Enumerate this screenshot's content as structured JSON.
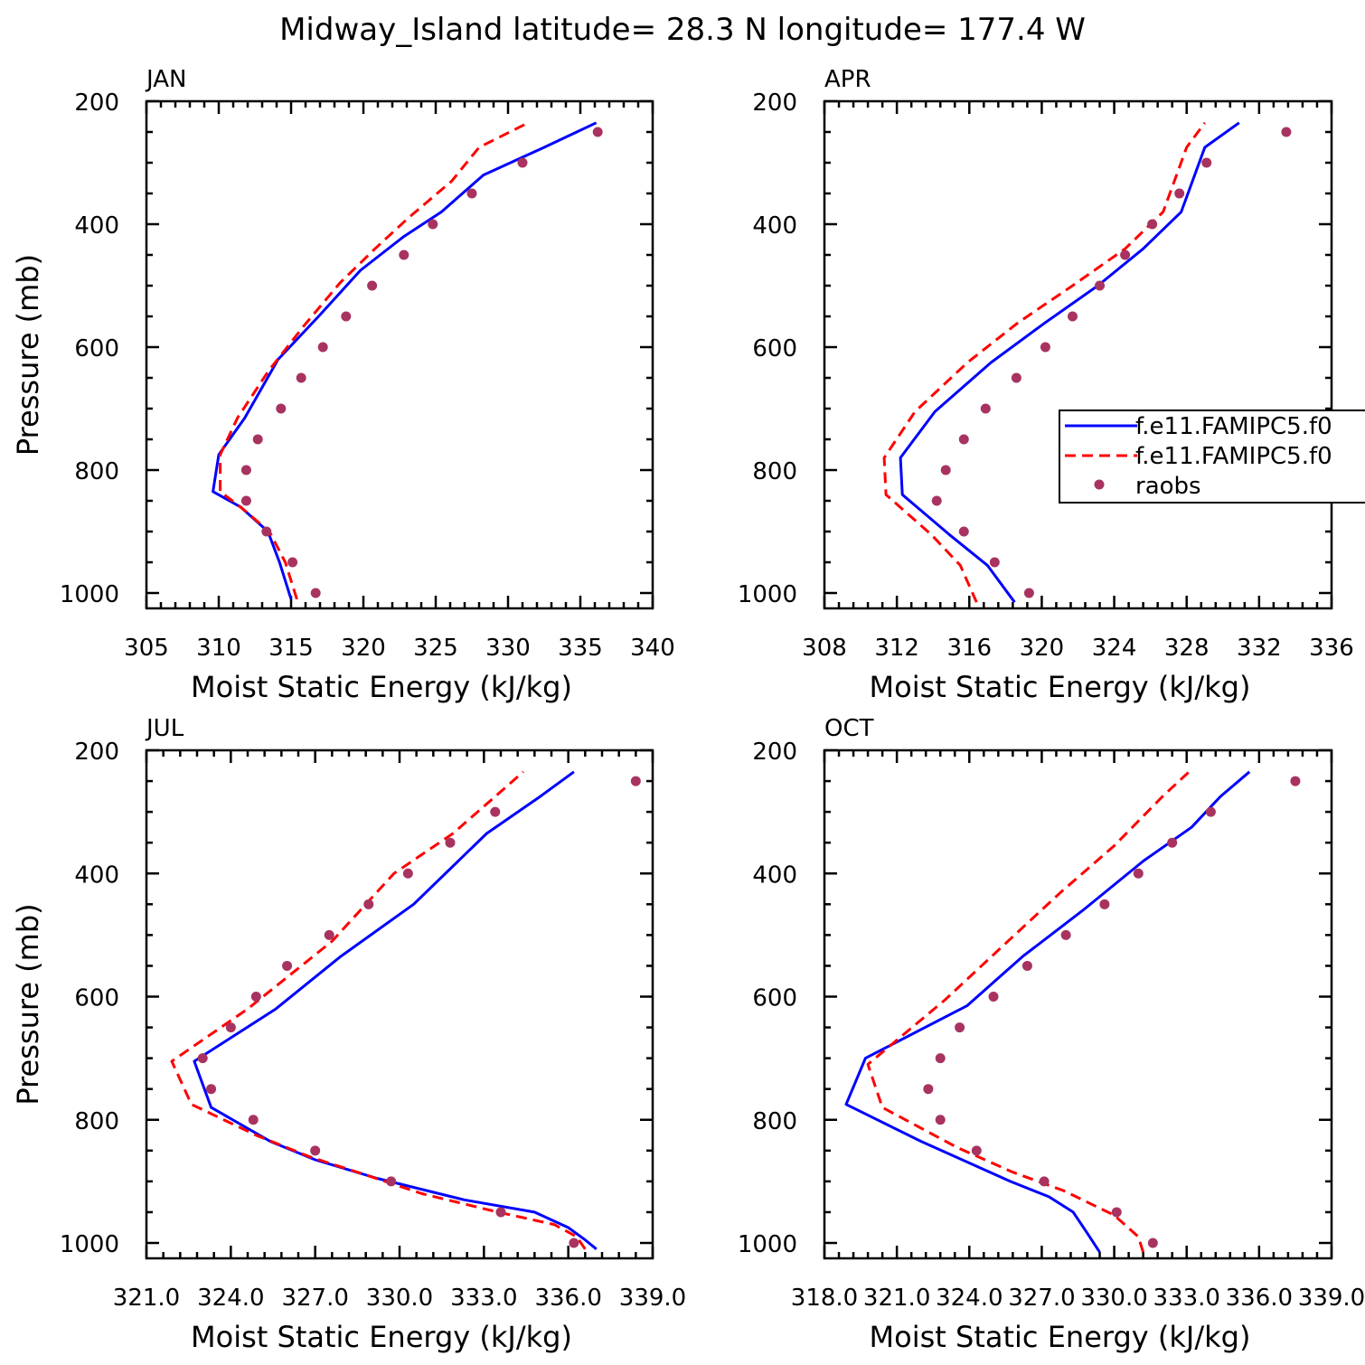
{
  "figure": {
    "title": "Midway_Island  latitude= 28.3 N longitude= 177.4 W"
  },
  "colors": {
    "model1": "#0000ff",
    "model2": "#ff0000",
    "raobs": "#a83360"
  },
  "legend": {
    "entries": [
      "f.e11.FAMIPC5.f0",
      "f.e11.FAMIPC5.f0",
      "raobs"
    ]
  },
  "chart_data": [
    {
      "type": "line",
      "panel": "JAN",
      "xlabel": "Moist Static Energy (kJ/kg)",
      "ylabel": "Pressure (mb)",
      "xlim": [
        305,
        340
      ],
      "ylim": [
        1000,
        200
      ],
      "xticks": [
        "305",
        "310",
        "315",
        "320",
        "325",
        "330",
        "335",
        "340"
      ],
      "yticks": [
        "200",
        "400",
        "600",
        "800",
        "1000"
      ],
      "series": [
        {
          "label": "f.e11.FAMIPC5.f0",
          "style": "solid",
          "x": [
            315.0,
            314.2,
            313.4,
            311.5,
            309.6,
            310.0,
            311.8,
            314.1,
            316.9,
            319.8,
            322.8,
            325.4,
            328.3,
            332.5,
            336.1
          ],
          "y": [
            1010,
            950,
            900,
            860,
            835,
            775,
            715,
            620,
            550,
            475,
            420,
            380,
            320,
            275,
            235
          ]
        },
        {
          "label": "f.e11.FAMIPC5.f0",
          "style": "dashed",
          "x": [
            315.4,
            314.6,
            313.5,
            311.5,
            310.1,
            310.1,
            311.3,
            313.4,
            315.9,
            318.4,
            320.8,
            323.1,
            326.1,
            328.0,
            331.4
          ],
          "y": [
            1010,
            950,
            900,
            860,
            835,
            775,
            715,
            640,
            565,
            495,
            440,
            390,
            330,
            275,
            235
          ]
        },
        {
          "label": "raobs",
          "style": "dots",
          "x": [
            316.7,
            315.1,
            313.3,
            311.9,
            311.9,
            312.7,
            314.3,
            315.7,
            317.2,
            318.8,
            320.6,
            322.8,
            324.8,
            327.5,
            331.0,
            336.2
          ],
          "y": [
            1000,
            950,
            900,
            850,
            800,
            750,
            700,
            650,
            600,
            550,
            500,
            450,
            400,
            350,
            300,
            250
          ]
        }
      ]
    },
    {
      "type": "line",
      "panel": "APR",
      "xlabel": "Moist Static Energy (kJ/kg)",
      "ylabel": "",
      "xlim": [
        308,
        336
      ],
      "ylim": [
        1000,
        200
      ],
      "xticks": [
        "308",
        "312",
        "316",
        "320",
        "324",
        "328",
        "332",
        "336"
      ],
      "yticks": [
        "200",
        "400",
        "600",
        "800",
        "1000"
      ],
      "series": [
        {
          "label": "f.e11.FAMIPC5.f0",
          "style": "solid",
          "x": [
            318.5,
            317.0,
            314.9,
            312.3,
            312.2,
            314.1,
            317.2,
            320.2,
            323.1,
            325.6,
            327.7,
            329.0,
            330.9
          ],
          "y": [
            1015,
            955,
            905,
            840,
            780,
            705,
            625,
            560,
            500,
            440,
            380,
            275,
            235
          ]
        },
        {
          "label": "f.e11.FAMIPC5.f0",
          "style": "dashed",
          "x": [
            316.4,
            315.5,
            313.9,
            311.4,
            311.3,
            313.0,
            315.9,
            318.7,
            321.7,
            324.6,
            326.7,
            328.0,
            329.0
          ],
          "y": [
            1015,
            955,
            905,
            840,
            780,
            705,
            625,
            560,
            500,
            440,
            380,
            275,
            235
          ]
        },
        {
          "label": "raobs",
          "style": "dots",
          "x": [
            319.3,
            317.4,
            315.7,
            314.2,
            314.7,
            315.7,
            316.9,
            318.6,
            320.2,
            321.7,
            323.2,
            324.6,
            326.1,
            327.6,
            329.1,
            333.5
          ],
          "y": [
            1000,
            950,
            900,
            850,
            800,
            750,
            700,
            650,
            600,
            550,
            500,
            450,
            400,
            350,
            300,
            250
          ]
        }
      ]
    },
    {
      "type": "line",
      "panel": "JUL",
      "xlabel": "Moist Static Energy (kJ/kg)",
      "ylabel": "Pressure (mb)",
      "xlim": [
        321.0,
        339.0
      ],
      "ylim": [
        1000,
        200
      ],
      "xticks": [
        "321.0",
        "324.0",
        "327.0",
        "330.0",
        "333.0",
        "336.0",
        "339.0"
      ],
      "yticks": [
        "200",
        "400",
        "600",
        "800",
        "1000"
      ],
      "series": [
        {
          "label": "f.e11.FAMIPC5.f0",
          "style": "solid",
          "x": [
            337.0,
            336.6,
            336.0,
            334.8,
            332.3,
            329.2,
            327.0,
            325.4,
            323.3,
            322.7,
            325.6,
            327.9,
            330.5,
            333.1,
            335.0,
            336.2
          ],
          "y": [
            1010,
            995,
            975,
            950,
            930,
            895,
            865,
            835,
            780,
            705,
            620,
            535,
            450,
            335,
            275,
            235
          ]
        },
        {
          "label": "f.e11.FAMIPC5.f0",
          "style": "dashed",
          "x": [
            336.6,
            336.3,
            335.5,
            333.5,
            330.8,
            328.5,
            326.8,
            324.9,
            322.6,
            321.9,
            324.6,
            327.6,
            329.8,
            331.9,
            333.4,
            334.4
          ],
          "y": [
            1010,
            990,
            970,
            950,
            920,
            885,
            860,
            825,
            775,
            705,
            620,
            510,
            400,
            335,
            275,
            235
          ]
        },
        {
          "label": "raobs",
          "style": "dots",
          "x": [
            336.2,
            333.6,
            329.7,
            327.0,
            324.8,
            323.3,
            323.0,
            324.0,
            324.9,
            326.0,
            327.5,
            328.9,
            330.3,
            331.8,
            333.4,
            338.4
          ],
          "y": [
            1000,
            950,
            900,
            850,
            800,
            750,
            700,
            650,
            600,
            550,
            500,
            450,
            400,
            350,
            300,
            250
          ]
        }
      ]
    },
    {
      "type": "line",
      "panel": "OCT",
      "xlabel": "Moist Static Energy (kJ/kg)",
      "ylabel": "",
      "xlim": [
        318.0,
        339.0
      ],
      "ylim": [
        1000,
        200
      ],
      "xticks": [
        "318.0",
        "321.0",
        "324.0",
        "327.0",
        "330.0",
        "333.0",
        "336.0",
        "339.0"
      ],
      "yticks": [
        "200",
        "400",
        "600",
        "800",
        "1000"
      ],
      "series": [
        {
          "label": "f.e11.FAMIPC5.f0",
          "style": "solid",
          "x": [
            329.4,
            328.9,
            328.3,
            327.3,
            325.7,
            322.0,
            318.9,
            319.7,
            323.9,
            326.2,
            328.7,
            331.2,
            333.2,
            334.4,
            335.6
          ],
          "y": [
            1015,
            985,
            950,
            925,
            900,
            835,
            775,
            700,
            615,
            535,
            460,
            380,
            325,
            275,
            235
          ]
        },
        {
          "label": "f.e11.FAMIPC5.f0",
          "style": "dashed",
          "x": [
            331.2,
            331.0,
            330.0,
            327.9,
            325.8,
            323.5,
            320.4,
            319.8,
            323.0,
            325.6,
            327.8,
            330.0,
            332.0,
            333.1
          ],
          "y": [
            1015,
            990,
            955,
            915,
            885,
            845,
            780,
            710,
            605,
            510,
            430,
            355,
            275,
            235
          ]
        },
        {
          "label": "raobs",
          "style": "dots",
          "x": [
            331.6,
            330.1,
            327.1,
            324.3,
            322.8,
            322.3,
            322.8,
            323.6,
            325.0,
            326.4,
            328.0,
            329.6,
            331.0,
            332.4,
            334.0,
            337.5
          ],
          "y": [
            1000,
            950,
            900,
            850,
            800,
            750,
            700,
            650,
            600,
            550,
            500,
            450,
            400,
            350,
            300,
            250
          ]
        }
      ]
    }
  ]
}
